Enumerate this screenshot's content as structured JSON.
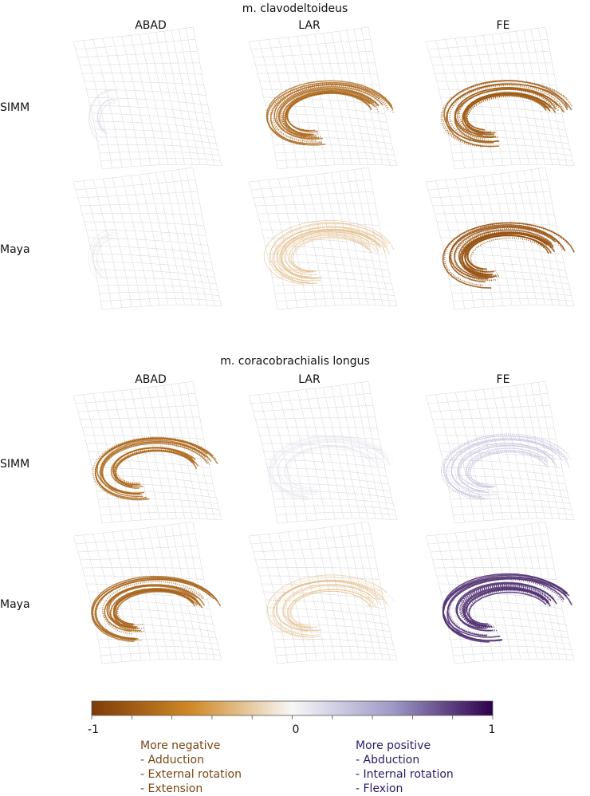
{
  "panels": [
    {
      "title": "m. clavodeltoideus",
      "columns": [
        "ABAD",
        "LAR",
        "FE"
      ],
      "rows": [
        {
          "label": "SIMM",
          "values": [
            0.18,
            -0.72,
            -0.8
          ]
        },
        {
          "label": "Maya",
          "values": [
            0.15,
            -0.3,
            -0.85
          ]
        }
      ]
    },
    {
      "title": "m. coracobrachialis longus",
      "columns": [
        "ABAD",
        "LAR",
        "FE"
      ],
      "rows": [
        {
          "label": "SIMM",
          "values": [
            -0.72,
            0.12,
            0.35
          ]
        },
        {
          "label": "Maya",
          "values": [
            -0.75,
            -0.3,
            0.85
          ]
        }
      ]
    }
  ],
  "colorbar": {
    "min_label": "-1",
    "mid_label": "0",
    "max_label": "1",
    "min": -1,
    "max": 1,
    "stops": [
      "#7f3b08",
      "#d08a27",
      "#f7f7f7",
      "#9e9ac8",
      "#2d004b"
    ]
  },
  "legend": {
    "negative": {
      "heading": "More negative",
      "items": [
        "- Adduction",
        "- External rotation",
        "- Extension"
      ]
    },
    "positive": {
      "heading": "More positive",
      "items": [
        "- Abduction",
        "- Internal rotation",
        "- Flexion"
      ]
    }
  }
}
